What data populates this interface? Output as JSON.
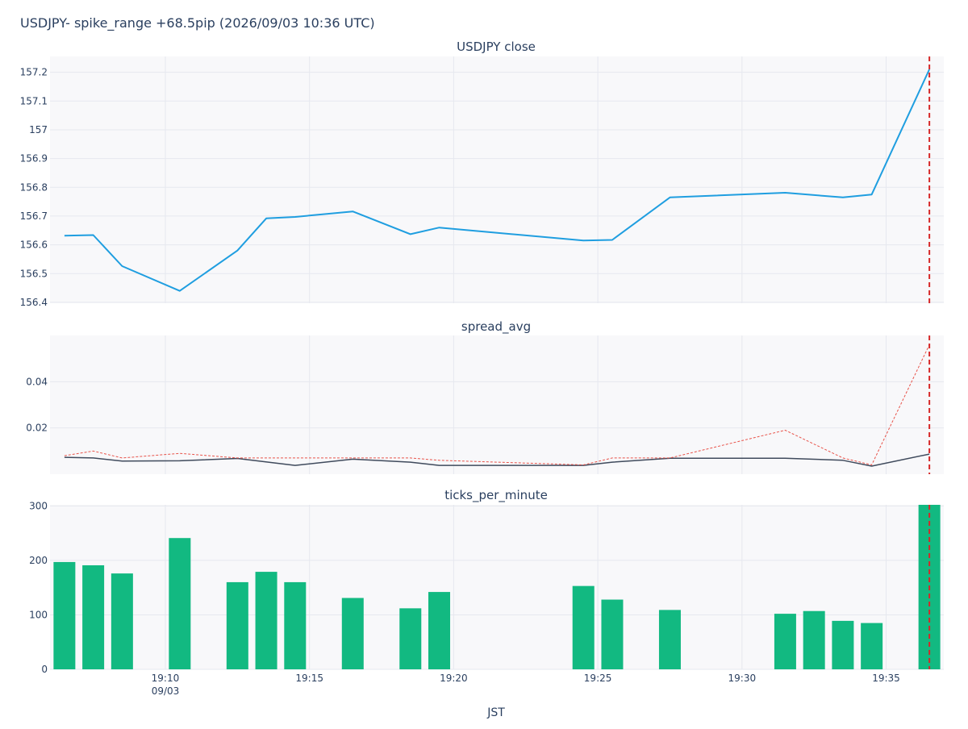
{
  "page_title": "USDJPY- spike_range +68.5pip (2026/09/03 10:36 UTC)",
  "x_axis_label": "JST",
  "x_tick_labels": [
    "19:10",
    "19:15",
    "19:20",
    "19:25",
    "19:30",
    "19:35"
  ],
  "x_tick_minutes": [
    10,
    15,
    20,
    25,
    30,
    35
  ],
  "x_date_label": "09/03",
  "colors": {
    "close": "#1f9ee0",
    "spread_solid": "#3f4a5c",
    "spread_dashed": "#e8534a",
    "ticks": "#12b981",
    "event_line": "#d62728",
    "plot_bg": "#f8f8fa",
    "grid": "#e6e8ef"
  },
  "chart_data": [
    {
      "type": "line",
      "title": "USDJPY close",
      "x_unit": "minutes after 19:00 JST",
      "x": [
        6.5,
        7.5,
        8.5,
        10.5,
        12.5,
        13.5,
        14.5,
        16.5,
        18.5,
        19.5,
        24.5,
        25.5,
        27.5,
        31.5,
        33.5,
        34.5,
        36.5
      ],
      "series": [
        {
          "values": [
            156.632,
            156.634,
            156.526,
            156.44,
            156.58,
            156.692,
            156.697,
            156.716,
            156.637,
            156.66,
            156.615,
            156.617,
            156.765,
            156.781,
            156.765,
            156.775,
            157.21
          ]
        }
      ],
      "y_ticks": [
        156.4,
        156.5,
        156.6,
        156.7,
        156.8,
        156.9,
        157,
        157.1,
        157.2
      ],
      "y_tick_labels": [
        "156.4",
        "156.5",
        "156.6",
        "156.7",
        "156.8",
        "156.9",
        "157",
        "157.1",
        "157.2"
      ],
      "ylim": [
        156.397,
        157.255
      ],
      "grid": true
    },
    {
      "type": "line",
      "title": "spread_avg",
      "x_unit": "minutes after 19:00 JST",
      "x": [
        6.5,
        7.5,
        8.5,
        10.5,
        12.5,
        14.5,
        16.5,
        18.5,
        19.5,
        24.5,
        25.5,
        27.5,
        31.5,
        33.5,
        34.5,
        36.5
      ],
      "series": [
        {
          "style": "solid",
          "values": [
            0.0073,
            0.007,
            0.0057,
            0.0058,
            0.0068,
            0.0038,
            0.0065,
            0.0052,
            0.0038,
            0.0038,
            0.0052,
            0.0069,
            0.0069,
            0.006,
            0.0035,
            0.0087
          ]
        },
        {
          "style": "dashed",
          "values": [
            0.008,
            0.01,
            0.007,
            0.009,
            0.007,
            0.007,
            0.007,
            0.007,
            0.006,
            0.004,
            0.007,
            0.007,
            0.019,
            0.007,
            0.004,
            0.056
          ]
        }
      ],
      "y_ticks": [
        0.02,
        0.04
      ],
      "y_tick_labels": [
        "0.02",
        "0.04"
      ],
      "ylim": [
        0,
        0.06
      ],
      "grid": true
    },
    {
      "type": "bar",
      "title": "ticks_per_minute",
      "x_unit": "minutes after 19:00 JST",
      "x": [
        6.5,
        7.5,
        8.5,
        10.5,
        12.5,
        13.5,
        14.5,
        16.5,
        18.5,
        19.5,
        24.5,
        25.5,
        27.5,
        31.5,
        32.5,
        33.5,
        34.5,
        36.5
      ],
      "values": [
        197,
        191,
        176,
        241,
        160,
        179,
        160,
        131,
        112,
        142,
        153,
        128,
        109,
        102,
        107,
        89,
        85,
        302
      ],
      "y_ticks": [
        0,
        100,
        200,
        300
      ],
      "y_tick_labels": [
        "0",
        "100",
        "200",
        "300"
      ],
      "ylim": [
        0,
        302
      ],
      "grid": true
    }
  ],
  "event_marker_x": 36.5
}
